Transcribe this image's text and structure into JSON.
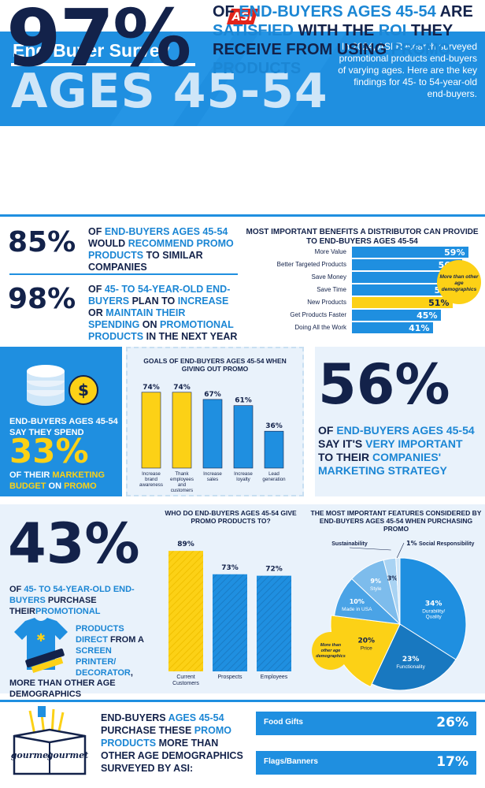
{
  "header": {
    "logo": "ASI",
    "title": "End-Buyer Survey",
    "big_title": "AGES 45-54",
    "intro": "In 2024, ASI Research surveyed promotional products end-buyers of varying ages. Here are the key findings for 45- to 54-year-old end-buyers."
  },
  "stat97": {
    "pct": "97%",
    "text_parts": [
      "OF ",
      "END-BUYERS AGES 45-54",
      " ARE ",
      "SATISFIED",
      " WITH THE ",
      "ROI",
      " THEY RECEIVE FROM USING ",
      "PROMO PRODUCTS"
    ]
  },
  "stat85": {
    "pct": "85%",
    "text_parts": [
      "OF ",
      "END-BUYERS AGES 45-54",
      " WOULD ",
      "RECOMMEND PROMO PRODUCTS",
      " TO SIMILAR COMPANIES"
    ]
  },
  "stat98": {
    "pct": "98%",
    "text_parts": [
      "OF ",
      "45- TO 54-YEAR-OLD END-BUYERS",
      " PLAN TO ",
      "INCREASE",
      " OR ",
      "MAINTAIN THEIR SPENDING",
      " ON ",
      "PROMOTIONAL PRODUCTS",
      " IN THE NEXT YEAR"
    ]
  },
  "benefits": {
    "title": "MOST IMPORTANT BENEFITS A DISTRIBUTOR CAN PROVIDE TO END-BUYERS AGES 45-54",
    "callout": "More than other age demographics"
  },
  "stat33": {
    "text_a": "END-BUYERS AGES 45-54 SAY THEY SPEND",
    "pct": "33%",
    "text_b_parts": [
      "OF THEIR ",
      "MARKETING BUDGET",
      " ON ",
      "PROMO"
    ]
  },
  "stat56": {
    "pct": "56%",
    "text_parts": [
      "OF ",
      "END-BUYERS AGES 45-54",
      " SAY IT'S ",
      "VERY IMPORTANT",
      " TO THEIR ",
      "COMPANIES' MARKETING STRATEGY"
    ]
  },
  "stat43": {
    "pct": "43%",
    "text_a_parts": [
      "OF ",
      "45- TO 54-YEAR-OLD END-BUYERS",
      " PURCHASE THEIR",
      "PROMOTIONAL"
    ],
    "text_b_parts": [
      "PRODUCTS DIRECT",
      " FROM A ",
      "SCREEN PRINTER/ DECORATOR",
      ","
    ],
    "text_c": "MORE THAN OTHER AGE DEMOGRAPHICS"
  },
  "gifts": {
    "text_parts": [
      "END-BUYERS ",
      "AGES 45-54",
      " PURCHASE THESE ",
      "PROMO PRODUCTS",
      " MORE THAN OTHER AGE DEMOGRAPHICS SURVEYED BY ASI:"
    ],
    "box_label": "gourmet",
    "items": [
      {
        "label": "Food Gifts",
        "value": "26%"
      },
      {
        "label": "Flags/Banners",
        "value": "17%"
      }
    ]
  },
  "colors": {
    "navy": "#13224a",
    "blue": "#1f8fe0",
    "yellow": "#fcd116",
    "light": "#e9f2fb"
  },
  "chart_data": [
    {
      "type": "bar",
      "orientation": "horizontal",
      "title": "MOST IMPORTANT BENEFITS A DISTRIBUTOR CAN PROVIDE TO END-BUYERS AGES 45-54",
      "categories": [
        "More Value",
        "Better Targeted Products",
        "Save Money",
        "Save Time",
        "New Products",
        "Get Products Faster",
        "Doing All the Work"
      ],
      "values": [
        59,
        56,
        56,
        54,
        51,
        45,
        41
      ],
      "highlight_index": 4,
      "xlim": [
        0,
        60
      ]
    },
    {
      "type": "bar",
      "title": "GOALS OF END-BUYERS AGES 45-54 WHEN GIVING OUT PROMO",
      "categories": [
        "Increase brand awareness",
        "Thank employees and customers",
        "Increase sales",
        "Increase loyalty",
        "Lead generation"
      ],
      "values": [
        74,
        74,
        67,
        61,
        36
      ],
      "colors": [
        "#fcd116",
        "#fcd116",
        "#1f8fe0",
        "#1f8fe0",
        "#1f8fe0"
      ],
      "ylim": [
        0,
        80
      ]
    },
    {
      "type": "bar",
      "title": "WHO DO END-BUYERS AGES 45-54 GIVE PROMO PRODUCTS TO?",
      "categories": [
        "Current Customers",
        "Prospects",
        "Employees"
      ],
      "values": [
        89,
        73,
        72
      ],
      "colors": [
        "#fcd116",
        "#1f8fe0",
        "#1f8fe0"
      ],
      "ylim": [
        0,
        95
      ]
    },
    {
      "type": "pie",
      "title": "THE MOST IMPORTANT FEATURES CONSIDERED BY END-BUYERS AGES 45-54 WHEN PURCHASING PROMO",
      "slices": [
        {
          "label": "Durability/ Quality",
          "value": 34,
          "color": "#1f8fe0"
        },
        {
          "label": "Functionality",
          "value": 23,
          "color": "#1878c0"
        },
        {
          "label": "Price",
          "value": 20,
          "color": "#fcd116"
        },
        {
          "label": "Made in USA",
          "value": 10,
          "color": "#4aa3e6"
        },
        {
          "label": "Style",
          "value": 9,
          "color": "#7dbcec"
        },
        {
          "label": "Sustainability",
          "value": 3,
          "color": "#a9d3f3"
        },
        {
          "label": "Social Responsibility",
          "value": 1,
          "color": "#cfe6f8"
        }
      ],
      "callout": "More than other age demographics"
    }
  ]
}
